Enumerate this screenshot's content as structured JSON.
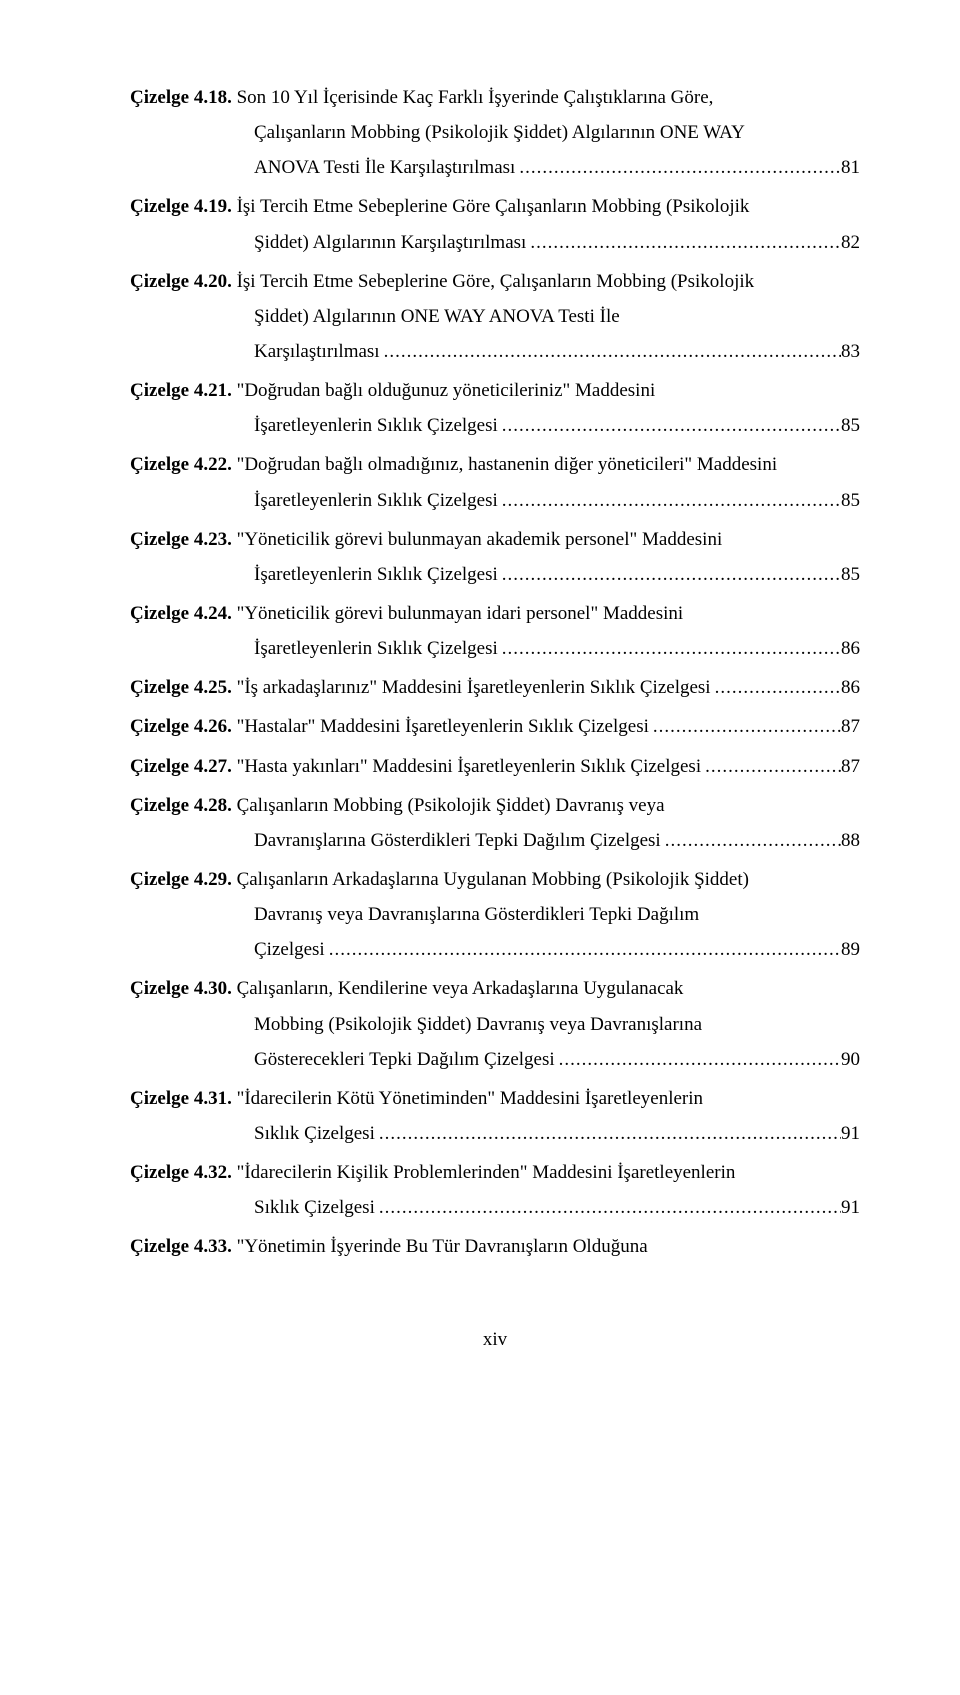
{
  "entries": [
    {
      "label": "Çizelge 4.18.",
      "lines": [
        "Son 10 Yıl İçerisinde Kaç Farklı İşyerinde Çalıştıklarına Göre,",
        "Çalışanların Mobbing (Psikolojik Şiddet) Algılarının ONE WAY"
      ],
      "last": "ANOVA Testi İle Karşılaştırılması",
      "page": "81"
    },
    {
      "label": "Çizelge 4.19.",
      "lines": [
        "İşi Tercih Etme Sebeplerine Göre Çalışanların Mobbing (Psikolojik"
      ],
      "last": "Şiddet) Algılarının Karşılaştırılması",
      "page": "82"
    },
    {
      "label": "Çizelge 4.20.",
      "lines": [
        "İşi Tercih Etme Sebeplerine Göre, Çalışanların Mobbing (Psikolojik",
        "Şiddet) Algılarının ONE WAY ANOVA Testi İle"
      ],
      "last": "Karşılaştırılması",
      "page": "83"
    },
    {
      "label": "Çizelge 4.21.",
      "lines": [
        " \"Doğrudan bağlı olduğunuz yöneticileriniz\" Maddesini"
      ],
      "last": "İşaretleyenlerin Sıklık Çizelgesi",
      "page": "85"
    },
    {
      "label": "Çizelge 4.22.",
      "lines": [
        " \"Doğrudan bağlı olmadığınız, hastanenin diğer yöneticileri\" Maddesini"
      ],
      "last": "İşaretleyenlerin Sıklık Çizelgesi",
      "page": "85"
    },
    {
      "label": "Çizelge 4.23.",
      "lines": [
        " \"Yöneticilik görevi bulunmayan akademik personel\" Maddesini"
      ],
      "last": "İşaretleyenlerin Sıklık Çizelgesi",
      "page": "85"
    },
    {
      "label": "Çizelge 4.24.",
      "lines": [
        " \"Yöneticilik görevi bulunmayan idari personel\" Maddesini"
      ],
      "last": "İşaretleyenlerin Sıklık Çizelgesi",
      "page": "86"
    },
    {
      "label": "Çizelge 4.25.",
      "lines": [],
      "last": " \"İş arkadaşlarınız\" Maddesini İşaretleyenlerin Sıklık Çizelgesi",
      "page": "86",
      "inline": true
    },
    {
      "label": "Çizelge 4.26.",
      "lines": [],
      "last": " \"Hastalar\" Maddesini İşaretleyenlerin Sıklık Çizelgesi",
      "page": "87",
      "inline": true
    },
    {
      "label": "Çizelge 4.27.",
      "lines": [],
      "last": " \"Hasta yakınları\" Maddesini İşaretleyenlerin Sıklık Çizelgesi",
      "page": "87",
      "inline": true
    },
    {
      "label": "Çizelge 4.28.",
      "lines": [
        " Çalışanların Mobbing (Psikolojik Şiddet) Davranış veya"
      ],
      "last": "Davranışlarına Gösterdikleri Tepki Dağılım Çizelgesi",
      "page": "88"
    },
    {
      "label": "Çizelge 4.29.",
      "lines": [
        " Çalışanların Arkadaşlarına Uygulanan Mobbing (Psikolojik Şiddet)",
        "Davranış veya Davranışlarına Gösterdikleri Tepki Dağılım"
      ],
      "last": "Çizelgesi",
      "page": "89"
    },
    {
      "label": "Çizelge 4.30.",
      "lines": [
        " Çalışanların, Kendilerine veya Arkadaşlarına Uygulanacak",
        "Mobbing (Psikolojik Şiddet) Davranış veya Davranışlarına"
      ],
      "last": "Gösterecekleri Tepki Dağılım Çizelgesi",
      "page": "90"
    },
    {
      "label": "Çizelge 4.31.",
      "lines": [
        " \"İdarecilerin Kötü Yönetiminden\"  Maddesini İşaretleyenlerin"
      ],
      "last": "Sıklık Çizelgesi",
      "page": "91"
    },
    {
      "label": "Çizelge 4.32.",
      "lines": [
        " \"İdarecilerin Kişilik Problemlerinden\"  Maddesini İşaretleyenlerin"
      ],
      "last": "Sıklık Çizelgesi",
      "page": "91"
    },
    {
      "label": "Çizelge 4.33.",
      "lines": [
        " \"Yönetimin İşyerinde Bu Tür Davranışların Olduğuna"
      ],
      "last": null,
      "page": null,
      "noLast": true
    }
  ],
  "pageNumber": "xiv",
  "dotChar": "."
}
